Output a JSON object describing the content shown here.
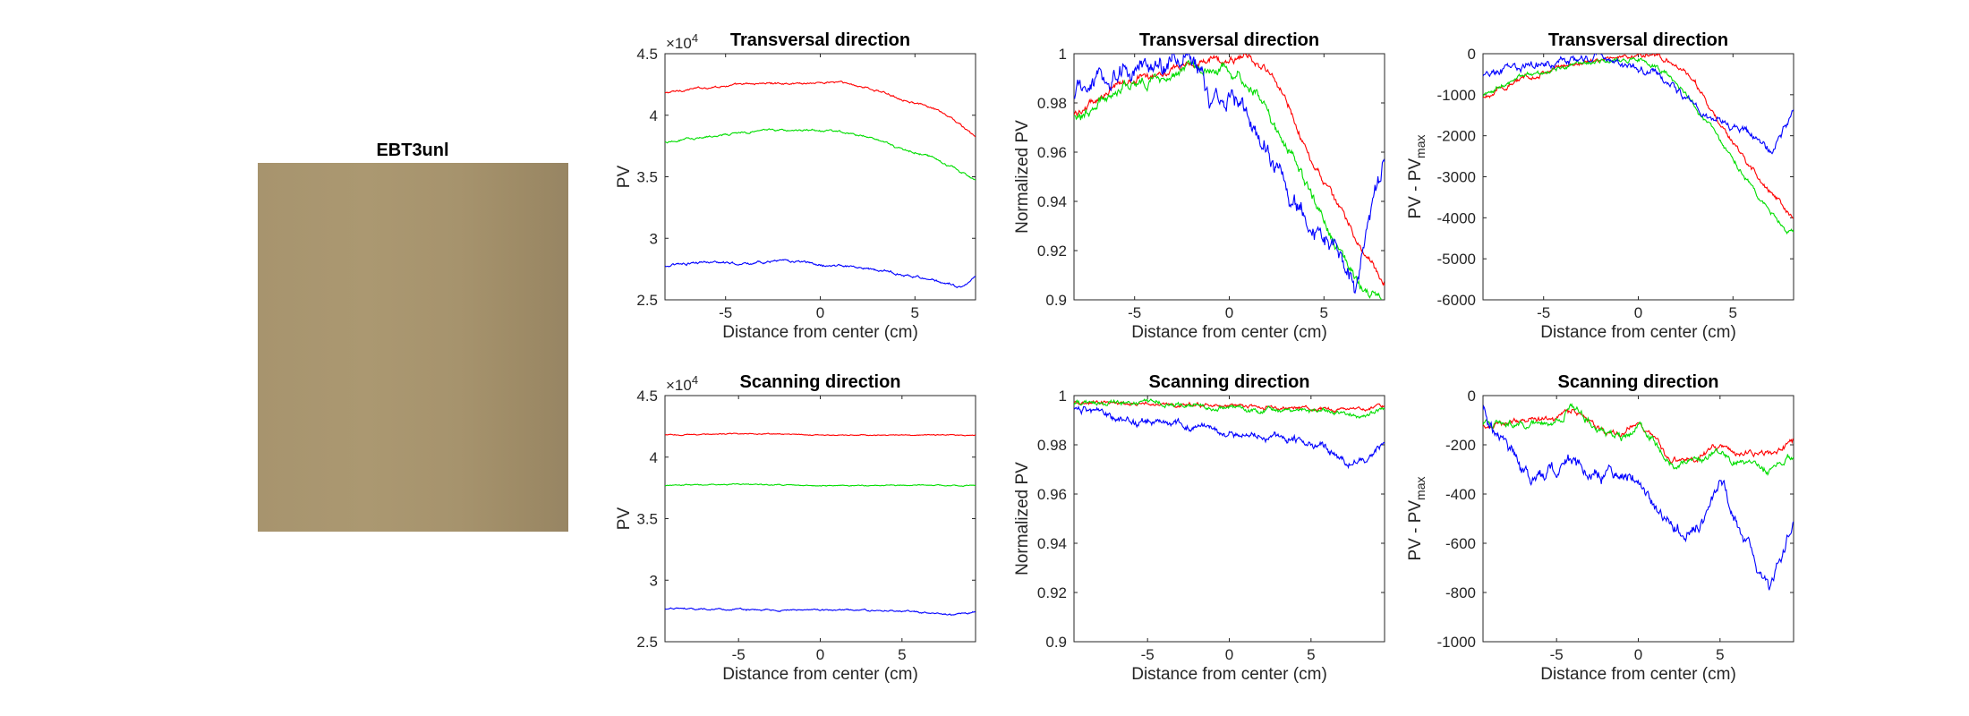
{
  "image_panel": {
    "title": "EBT3unl"
  },
  "chart_data": [
    {
      "id": "trans-pv",
      "type": "line",
      "title": "Transversal direction",
      "xlabel": "Distance from center (cm)",
      "ylabel": "PV",
      "ylabel_sub": "",
      "exponent_base": "×10",
      "exponent_power": "4",
      "xlim": [
        -8.2,
        8.2
      ],
      "ylim": [
        2.5,
        4.5
      ],
      "xticks": [
        -5,
        0,
        5
      ],
      "xtick_labels": [
        "-5",
        "0",
        "5"
      ],
      "yticks": [
        2.5,
        3,
        3.5,
        4,
        4.5
      ],
      "ytick_labels": [
        "2.5",
        "3",
        "3.5",
        "4",
        "4.5"
      ],
      "series": [
        {
          "color": "#ff0000",
          "x": [
            -8.2,
            -7,
            -5,
            -3,
            -1,
            1,
            2,
            3,
            4,
            5,
            6,
            7,
            8.2
          ],
          "y": [
            4.18,
            4.21,
            4.24,
            4.26,
            4.26,
            4.27,
            4.24,
            4.2,
            4.15,
            4.1,
            4.05,
            3.97,
            3.82
          ],
          "noise": 0.008
        },
        {
          "color": "#00dd00",
          "x": [
            -8.2,
            -7,
            -5,
            -3,
            -1,
            1,
            2,
            3,
            4,
            5,
            6,
            7,
            8.2
          ],
          "y": [
            3.78,
            3.81,
            3.84,
            3.88,
            3.88,
            3.87,
            3.84,
            3.8,
            3.74,
            3.7,
            3.65,
            3.58,
            3.47
          ],
          "noise": 0.008
        },
        {
          "color": "#0000ff",
          "x": [
            -8.2,
            -6,
            -4,
            -2,
            0,
            2,
            4,
            6,
            7,
            7.6,
            8.2
          ],
          "y": [
            2.78,
            2.8,
            2.8,
            2.82,
            2.79,
            2.77,
            2.72,
            2.66,
            2.62,
            2.6,
            2.7
          ],
          "noise": 0.01
        }
      ]
    },
    {
      "id": "trans-norm",
      "type": "line",
      "title": "Transversal direction",
      "xlabel": "Distance from center (cm)",
      "ylabel": "Normalized PV",
      "ylabel_sub": "",
      "exponent_base": "",
      "exponent_power": "",
      "xlim": [
        -8.2,
        8.2
      ],
      "ylim": [
        0.9,
        1.0
      ],
      "xticks": [
        -5,
        0,
        5
      ],
      "xtick_labels": [
        "-5",
        "0",
        "5"
      ],
      "yticks": [
        0.9,
        0.92,
        0.94,
        0.96,
        0.98,
        1.0
      ],
      "ytick_labels": [
        "0.9",
        "0.92",
        "0.94",
        "0.96",
        "0.98",
        "1"
      ],
      "series": [
        {
          "color": "#ff0000",
          "x": [
            -8.2,
            -6,
            -4,
            -2,
            0,
            1,
            2,
            3,
            4,
            5,
            6,
            7,
            8.2
          ],
          "y": [
            0.975,
            0.987,
            0.992,
            0.996,
            0.998,
            0.999,
            0.993,
            0.982,
            0.962,
            0.947,
            0.935,
            0.921,
            0.905
          ],
          "noise": 0.0015
        },
        {
          "color": "#00dd00",
          "x": [
            -8.2,
            -6,
            -4,
            -2,
            0,
            1,
            2,
            3,
            4,
            5,
            6,
            7,
            8.2
          ],
          "y": [
            0.973,
            0.985,
            0.99,
            0.994,
            0.993,
            0.989,
            0.977,
            0.962,
            0.947,
            0.932,
            0.918,
            0.905,
            0.9
          ],
          "noise": 0.002
        },
        {
          "color": "#0000ff",
          "x": [
            -8.2,
            -7,
            -6,
            -4,
            -2,
            -1,
            0,
            1,
            2,
            3,
            4,
            5,
            6,
            6.8,
            7.3,
            8.2
          ],
          "y": [
            0.983,
            0.988,
            0.99,
            0.994,
            0.998,
            0.98,
            0.98,
            0.975,
            0.96,
            0.945,
            0.935,
            0.926,
            0.916,
            0.905,
            0.93,
            0.955
          ],
          "noise": 0.004
        }
      ]
    },
    {
      "id": "trans-diff",
      "type": "line",
      "title": "Transversal direction",
      "xlabel": "Distance from center (cm)",
      "ylabel": "PV - PV",
      "ylabel_sub": "max",
      "exponent_base": "",
      "exponent_power": "",
      "xlim": [
        -8.2,
        8.2
      ],
      "ylim": [
        -6000,
        0
      ],
      "xticks": [
        -5,
        0,
        5
      ],
      "xtick_labels": [
        "-5",
        "0",
        "5"
      ],
      "yticks": [
        -6000,
        -5000,
        -4000,
        -3000,
        -2000,
        -1000,
        0
      ],
      "ytick_labels": [
        "-6000",
        "-5000",
        "-4000",
        "-3000",
        "-2000",
        "-1000",
        "0"
      ],
      "series": [
        {
          "color": "#ff0000",
          "x": [
            -8.2,
            -6,
            -4,
            -2,
            0,
            1,
            2,
            3,
            4,
            5,
            6,
            7,
            8.2
          ],
          "y": [
            -1050,
            -600,
            -300,
            -120,
            -50,
            -20,
            -250,
            -700,
            -1500,
            -2200,
            -2800,
            -3400,
            -4000
          ],
          "noise": 60
        },
        {
          "color": "#00dd00",
          "x": [
            -8.2,
            -6,
            -4,
            -2,
            0,
            1,
            2,
            3,
            4,
            5,
            6,
            7,
            8.2
          ],
          "y": [
            -1000,
            -550,
            -350,
            -180,
            -150,
            -300,
            -700,
            -1300,
            -1900,
            -2600,
            -3200,
            -3900,
            -4400
          ],
          "noise": 60
        },
        {
          "color": "#0000ff",
          "x": [
            -8.2,
            -7,
            -5,
            -3,
            -2,
            -1,
            0,
            1,
            2,
            3,
            4,
            5,
            6,
            7,
            7.6,
            8.2
          ],
          "y": [
            -550,
            -400,
            -250,
            -100,
            0,
            -300,
            -350,
            -500,
            -900,
            -1300,
            -1600,
            -1750,
            -2000,
            -2400,
            -1900,
            -1300
          ],
          "noise": 90
        }
      ]
    },
    {
      "id": "scan-pv",
      "type": "line",
      "title": "Scanning direction",
      "xlabel": "Distance from center (cm)",
      "ylabel": "PV",
      "ylabel_sub": "",
      "exponent_base": "×10",
      "exponent_power": "4",
      "xlim": [
        -9.5,
        9.5
      ],
      "ylim": [
        2.5,
        4.5
      ],
      "xticks": [
        -5,
        0,
        5
      ],
      "xtick_labels": [
        "-5",
        "0",
        "5"
      ],
      "yticks": [
        2.5,
        3,
        3.5,
        4,
        4.5
      ],
      "ytick_labels": [
        "2.5",
        "3",
        "3.5",
        "4",
        "4.5"
      ],
      "series": [
        {
          "color": "#ff0000",
          "x": [
            -9.5,
            -5,
            0,
            5,
            9.5
          ],
          "y": [
            4.18,
            4.19,
            4.18,
            4.18,
            4.18
          ],
          "noise": 0.004
        },
        {
          "color": "#00dd00",
          "x": [
            -9.5,
            -5,
            0,
            5,
            9.5
          ],
          "y": [
            3.77,
            3.78,
            3.77,
            3.77,
            3.77
          ],
          "noise": 0.004
        },
        {
          "color": "#0000ff",
          "x": [
            -9.5,
            -5,
            0,
            5,
            8,
            9.5
          ],
          "y": [
            2.77,
            2.76,
            2.76,
            2.75,
            2.72,
            2.74
          ],
          "noise": 0.006
        }
      ]
    },
    {
      "id": "scan-norm",
      "type": "line",
      "title": "Scanning direction",
      "xlabel": "Distance from center (cm)",
      "ylabel": "Normalized PV",
      "ylabel_sub": "",
      "exponent_base": "",
      "exponent_power": "",
      "xlim": [
        -9.5,
        9.5
      ],
      "ylim": [
        0.9,
        1.0
      ],
      "xticks": [
        -5,
        0,
        5
      ],
      "xtick_labels": [
        "-5",
        "0",
        "5"
      ],
      "yticks": [
        0.9,
        0.92,
        0.94,
        0.96,
        0.98,
        1.0
      ],
      "ytick_labels": [
        "0.9",
        "0.92",
        "0.94",
        "0.96",
        "0.98",
        "1"
      ],
      "series": [
        {
          "color": "#ff0000",
          "x": [
            -9.5,
            -5,
            -2,
            0,
            2,
            5,
            8,
            9.5
          ],
          "y": [
            0.997,
            0.997,
            0.996,
            0.996,
            0.995,
            0.995,
            0.994,
            0.996
          ],
          "noise": 0.0008
        },
        {
          "color": "#00dd00",
          "x": [
            -9.5,
            -5,
            -2,
            0,
            2,
            5,
            8,
            9.5
          ],
          "y": [
            0.997,
            0.997,
            0.996,
            0.995,
            0.994,
            0.994,
            0.992,
            0.994
          ],
          "noise": 0.001
        },
        {
          "color": "#0000ff",
          "x": [
            -9.5,
            -6,
            -3,
            0,
            2,
            4,
            6,
            7.5,
            8.5,
            9.5
          ],
          "y": [
            0.995,
            0.99,
            0.988,
            0.985,
            0.984,
            0.982,
            0.978,
            0.972,
            0.975,
            0.982
          ],
          "noise": 0.0015
        }
      ]
    },
    {
      "id": "scan-diff",
      "type": "line",
      "title": "Scanning direction",
      "xlabel": "Distance from center (cm)",
      "ylabel": "PV - PV",
      "ylabel_sub": "max",
      "exponent_base": "",
      "exponent_power": "",
      "xlim": [
        -9.5,
        9.5
      ],
      "ylim": [
        -1000,
        0
      ],
      "xticks": [
        -5,
        0,
        5
      ],
      "xtick_labels": [
        "-5",
        "0",
        "5"
      ],
      "yticks": [
        -1000,
        -800,
        -600,
        -400,
        -200,
        0
      ],
      "ytick_labels": [
        "-1000",
        "-800",
        "-600",
        "-400",
        "-200",
        "0"
      ],
      "series": [
        {
          "color": "#ff0000",
          "x": [
            -9.5,
            -7,
            -5,
            -4,
            -3,
            -2,
            -1,
            0,
            1,
            2,
            4,
            5,
            6,
            8,
            9.5
          ],
          "y": [
            -120,
            -100,
            -90,
            -60,
            -110,
            -140,
            -160,
            -110,
            -180,
            -270,
            -240,
            -200,
            -240,
            -230,
            -190
          ],
          "noise": 12
        },
        {
          "color": "#00dd00",
          "x": [
            -9.5,
            -7,
            -5,
            -4,
            -3,
            -2,
            -1,
            0,
            1,
            2,
            4,
            5,
            6,
            8,
            9.5
          ],
          "y": [
            -110,
            -120,
            -100,
            -40,
            -100,
            -150,
            -170,
            -120,
            -190,
            -280,
            -250,
            -210,
            -270,
            -300,
            -240
          ],
          "noise": 15
        },
        {
          "color": "#0000ff",
          "x": [
            -9.5,
            -8,
            -6.5,
            -5,
            -4,
            -3,
            -2,
            -1,
            0,
            1,
            2,
            3,
            4,
            5,
            6,
            7,
            8,
            9,
            9.5
          ],
          "y": [
            -50,
            -220,
            -350,
            -300,
            -250,
            -330,
            -320,
            -340,
            -320,
            -450,
            -520,
            -560,
            -500,
            -350,
            -520,
            -650,
            -800,
            -620,
            -480
          ],
          "noise": 25
        }
      ]
    }
  ]
}
